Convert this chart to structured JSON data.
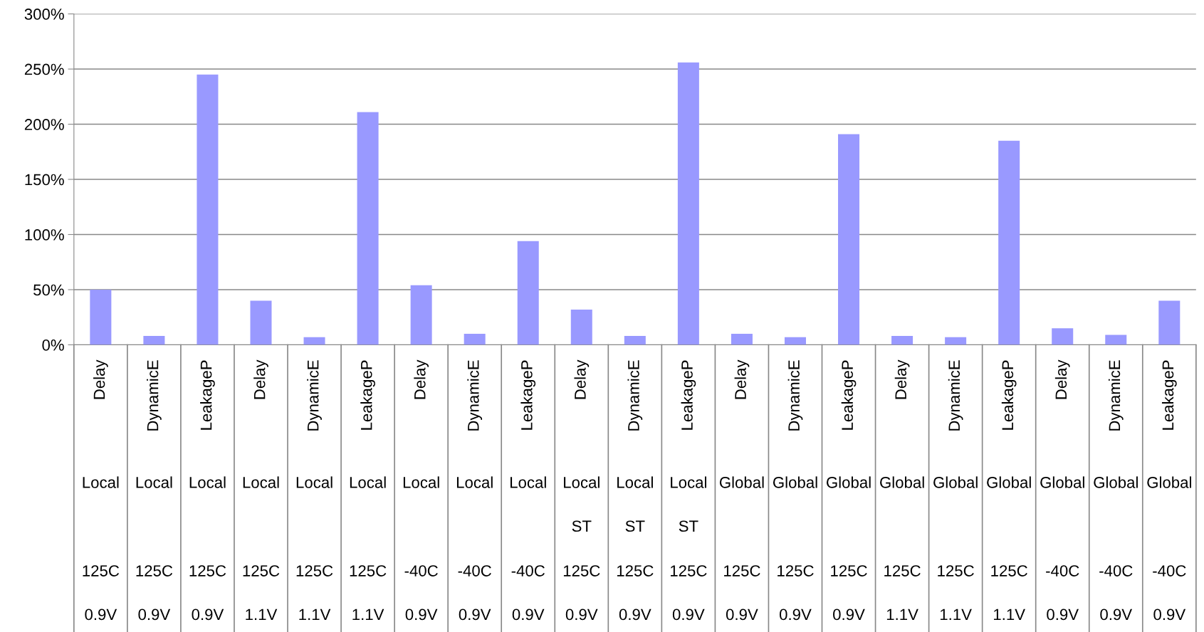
{
  "chart_data": {
    "type": "bar",
    "color": "#9999ff",
    "categories": [
      "Delay\nLocal\n\n125C\n0.9V",
      "DynamicE\nLocal\n\n125C\n0.9V",
      "LeakageP\nLocal\n\n125C\n0.9V",
      "Delay\nLocal\n\n125C\n1.1V",
      "DynamicE\nLocal\n\n125C\n1.1V",
      "LeakageP\nLocal\n\n125C\n1.1V",
      "Delay\nLocal\n\n-40C\n0.9V",
      "DynamicE\nLocal\n\n-40C\n0.9V",
      "LeakageP\nLocal\n\n-40C\n0.9V",
      "Delay\nLocal\nST\n125C\n0.9V",
      "DynamicE\nLocal\nST\n125C\n0.9V",
      "LeakageP\nLocal\nST\n125C\n0.9V",
      "Delay\nGlobal\n\n125C\n0.9V",
      "DynamicE\nGlobal\n\n125C\n0.9V",
      "LeakageP\nGlobal\n\n125C\n0.9V",
      "Delay\nGlobal\n\n125C\n1.1V",
      "DynamicE\nGlobal\n\n125C\n1.1V",
      "LeakageP\nGlobal\n\n125C\n1.1V",
      "Delay\nGlobal\n\n-40C\n0.9V",
      "DynamicE\nGlobal\n\n-40C\n0.9V",
      "LeakageP\nGlobal\n\n-40C\n0.9V"
    ],
    "values": [
      50,
      8,
      245,
      40,
      7,
      211,
      54,
      10,
      94,
      32,
      8,
      256,
      10,
      7,
      191,
      8,
      7,
      185,
      15,
      9,
      40
    ],
    "ylim": [
      0,
      300
    ],
    "yticks": [
      {
        "value": 0,
        "label": "0%"
      },
      {
        "value": 50,
        "label": "50%"
      },
      {
        "value": 100,
        "label": "100%"
      },
      {
        "value": 150,
        "label": "150%"
      },
      {
        "value": 200,
        "label": "200%"
      },
      {
        "value": 250,
        "label": "250%"
      },
      {
        "value": 300,
        "label": "300%"
      }
    ],
    "grid": "y",
    "legend": false
  }
}
